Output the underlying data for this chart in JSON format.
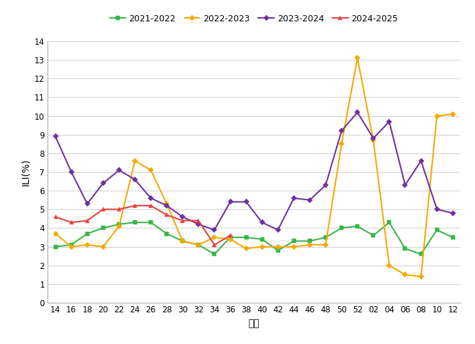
{
  "x_labels": [
    "14",
    "16",
    "18",
    "20",
    "22",
    "24",
    "26",
    "28",
    "30",
    "32",
    "34",
    "36",
    "38",
    "40",
    "42",
    "44",
    "46",
    "48",
    "50",
    "52",
    "02",
    "04",
    "06",
    "08",
    "10",
    "12"
  ],
  "series_order": [
    "2021-2022",
    "2022-2023",
    "2023-2024",
    "2024-2025"
  ],
  "series": {
    "2021-2022": {
      "color": "#3ab54a",
      "marker": "s",
      "markersize": 4,
      "values": [
        3.0,
        3.1,
        3.7,
        4.0,
        4.2,
        4.3,
        4.3,
        3.7,
        3.3,
        3.1,
        2.6,
        3.5,
        3.5,
        3.4,
        2.8,
        3.3,
        3.3,
        3.5,
        4.0,
        4.1,
        3.6,
        4.3,
        2.9,
        2.6,
        3.9,
        3.5
      ]
    },
    "2022-2023": {
      "color": "#f5a800",
      "marker": "D",
      "markersize": 4,
      "values": [
        3.7,
        3.0,
        3.1,
        3.0,
        4.1,
        7.6,
        7.1,
        5.3,
        3.3,
        3.1,
        3.5,
        3.4,
        2.9,
        3.0,
        3.0,
        3.0,
        3.1,
        3.1,
        8.5,
        13.1,
        8.7,
        2.0,
        1.5,
        1.4,
        10.0,
        10.1
      ]
    },
    "2023-2024": {
      "color": "#7030a0",
      "marker": "D",
      "markersize": 4,
      "values": [
        8.9,
        7.0,
        5.3,
        6.4,
        7.1,
        6.6,
        5.6,
        5.2,
        4.6,
        4.2,
        3.9,
        5.4,
        5.4,
        4.3,
        3.9,
        5.6,
        5.5,
        6.3,
        9.2,
        10.2,
        8.8,
        9.7,
        6.3,
        7.6,
        5.0,
        4.8
      ]
    },
    "2024-2025": {
      "color": "#e84040",
      "marker": "^",
      "markersize": 5,
      "values": [
        4.6,
        4.3,
        4.4,
        5.0,
        5.0,
        5.2,
        5.2,
        4.7,
        4.4,
        4.4,
        3.1,
        3.6,
        null,
        null,
        null,
        null,
        null,
        null,
        null,
        null,
        null,
        null,
        null,
        null,
        null,
        null
      ]
    }
  },
  "xlabel": "周次",
  "ylabel": "ILI(%)",
  "ylim": [
    0,
    14
  ],
  "yticks": [
    0,
    1,
    2,
    3,
    4,
    5,
    6,
    7,
    8,
    9,
    10,
    11,
    12,
    13,
    14
  ],
  "background_color": "#ffffff",
  "grid_color": "#d0d0d0",
  "spine_color": "#aaaaaa",
  "tick_fontsize": 8.5,
  "label_fontsize": 10,
  "legend_fontsize": 9,
  "linewidth": 1.5
}
